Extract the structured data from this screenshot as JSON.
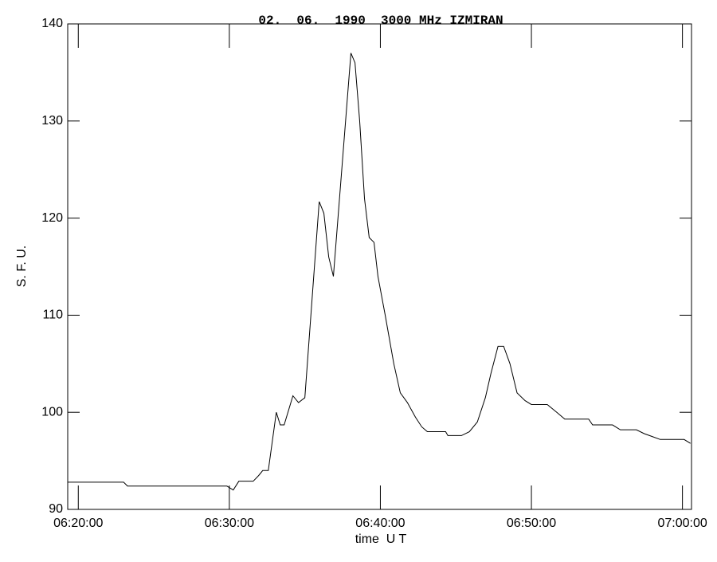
{
  "chart_data": {
    "type": "line",
    "title": "02.  06.  1990  3000 MHz IZMIRAN",
    "x_label": "time  U T",
    "y_label": "S. F. U.",
    "xlim": [
      379.3,
      420.6
    ],
    "ylim": [
      90,
      140
    ],
    "xticks": [
      {
        "value": 380,
        "label": "06:20:00"
      },
      {
        "value": 390,
        "label": "06:30:00"
      },
      {
        "value": 400,
        "label": "06:40:00"
      },
      {
        "value": 410,
        "label": "06:50:00"
      },
      {
        "value": 420,
        "label": "07:00:00"
      }
    ],
    "yticks": [
      90,
      100,
      110,
      120,
      130,
      140
    ],
    "x": [
      379.32,
      383.0,
      383.26,
      389.84,
      390.26,
      390.63,
      391.58,
      391.95,
      392.21,
      392.58,
      393.11,
      393.37,
      393.63,
      394.21,
      394.58,
      395.0,
      395.95,
      396.26,
      396.58,
      396.89,
      398.05,
      398.32,
      398.63,
      398.95,
      399.26,
      399.58,
      399.84,
      400.32,
      400.89,
      401.32,
      401.79,
      402.32,
      402.74,
      403.11,
      404.32,
      404.47,
      405.37,
      405.89,
      406.42,
      406.95,
      407.32,
      407.79,
      408.16,
      408.58,
      409.05,
      409.58,
      410.0,
      411.05,
      411.68,
      412.21,
      413.79,
      414.05,
      415.37,
      415.89,
      416.95,
      417.47,
      418.0,
      418.53,
      420.11,
      420.53
    ],
    "series": [
      {
        "color": "#000000",
        "values": [
          92.8,
          92.8,
          92.4,
          92.4,
          92.0,
          92.9,
          92.9,
          93.5,
          94,
          94,
          100,
          98.7,
          98.7,
          101.7,
          101,
          101.5,
          121.7,
          120.5,
          116,
          114,
          137,
          136,
          130,
          122,
          118,
          117.5,
          114,
          110,
          105,
          102,
          101,
          99.5,
          98.5,
          98,
          98,
          97.6,
          97.6,
          98,
          99,
          101.5,
          104,
          106.8,
          106.8,
          105,
          102,
          101.2,
          100.8,
          100.8,
          100,
          99.3,
          99.3,
          98.7,
          98.7,
          98.2,
          98.2,
          97.8,
          97.5,
          97.2,
          97.2,
          96.8
        ]
      }
    ]
  }
}
